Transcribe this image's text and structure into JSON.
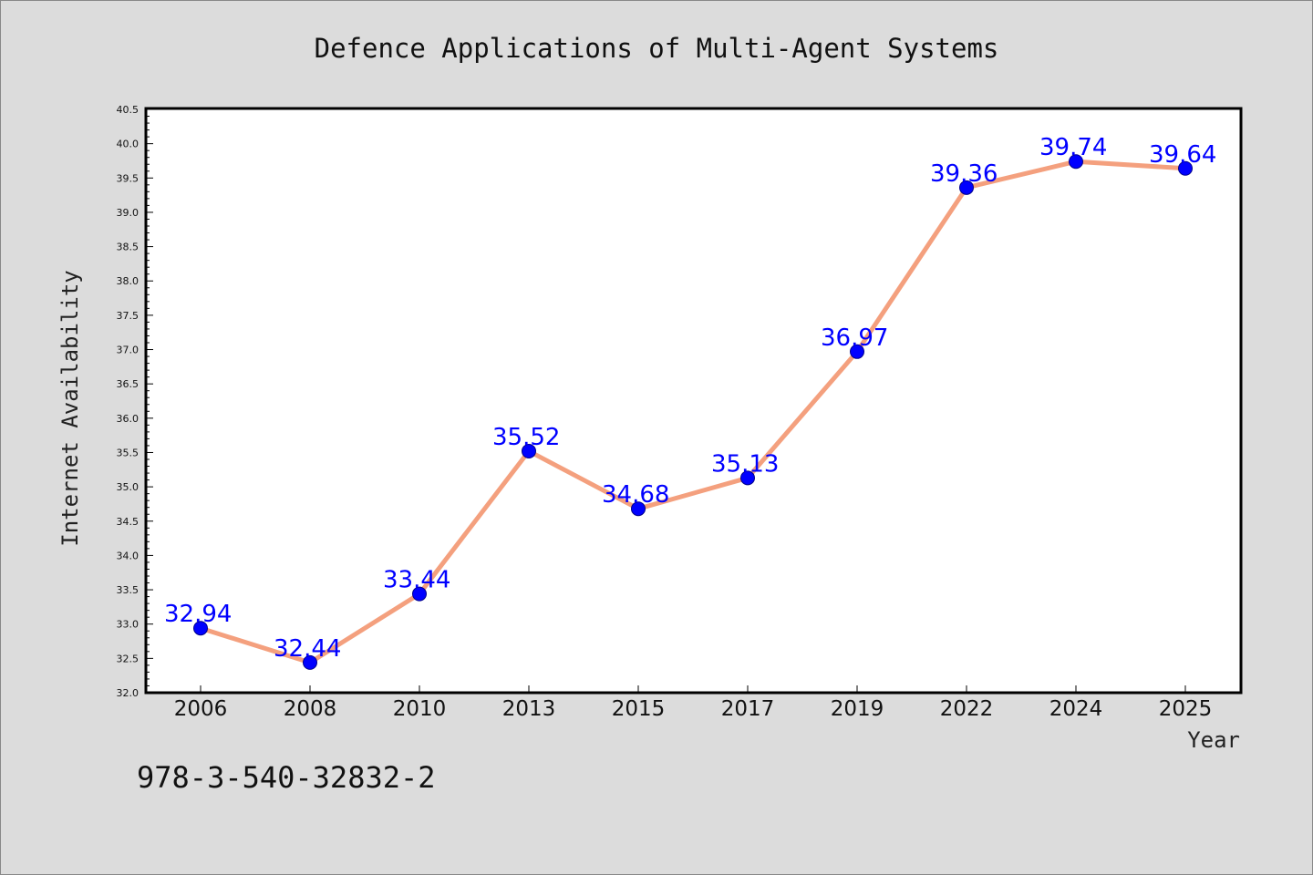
{
  "chart_data": {
    "type": "line",
    "title": "Defence Applications of Multi-Agent Systems",
    "xlabel": "Year",
    "ylabel": "Internet Availability",
    "categories": [
      "2006",
      "2008",
      "2010",
      "2013",
      "2015",
      "2017",
      "2019",
      "2022",
      "2024",
      "2025"
    ],
    "series": [
      {
        "values": [
          32.94,
          32.44,
          33.44,
          35.52,
          34.68,
          35.13,
          36.97,
          39.36,
          39.74,
          39.64
        ],
        "data_labels": [
          "32.94",
          "32.44",
          "33.44",
          "35.52",
          "34.68",
          "35.13",
          "36.97",
          "39.36",
          "39.74",
          "39.64"
        ],
        "line_color": "#f4a07e",
        "marker_color": "#0000ff"
      }
    ],
    "ylim": [
      32.0,
      40.5
    ],
    "y_ticks": [
      "32.0",
      "32.5",
      "33.0",
      "33.5",
      "34.0",
      "34.5",
      "35.0",
      "35.5",
      "36.0",
      "36.5",
      "37.0",
      "37.5",
      "38.0",
      "38.5",
      "39.0",
      "39.5",
      "40.0",
      "40.5"
    ],
    "grid": false,
    "legend": "none"
  },
  "footnote": "978-3-540-32832-2",
  "colors": {
    "background": "#dcdcdc",
    "plot_background": "#ffffff",
    "line": "#f4a07e",
    "marker": "#0000ff",
    "data_label": "#0000ff"
  }
}
